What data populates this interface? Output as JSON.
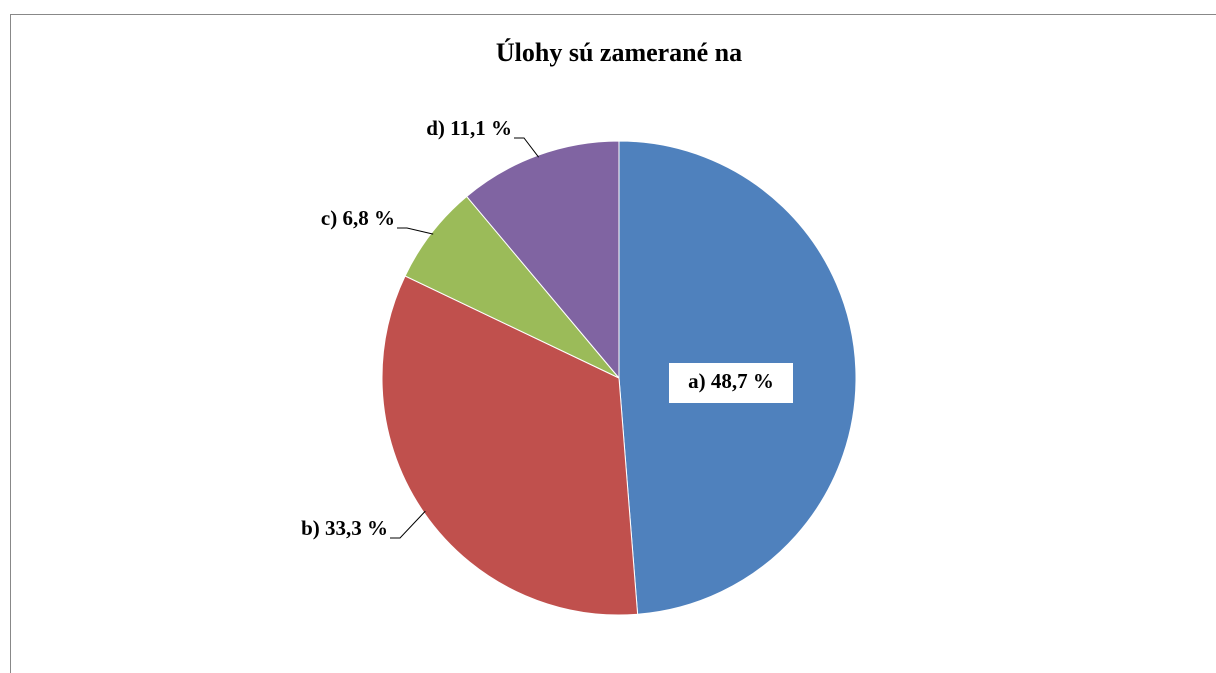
{
  "chart_data": {
    "type": "pie",
    "title": "Úlohy sú zamerané na",
    "values": [
      48.7,
      33.3,
      6.8,
      11.1
    ],
    "value_labels": [
      "a) 48,7 %",
      "b) 33,3 %",
      "c) 6,8 %",
      "d) 11,1 %"
    ],
    "colors": [
      "#4f81bd",
      "#c0504d",
      "#9bbb59",
      "#8064a2"
    ]
  }
}
